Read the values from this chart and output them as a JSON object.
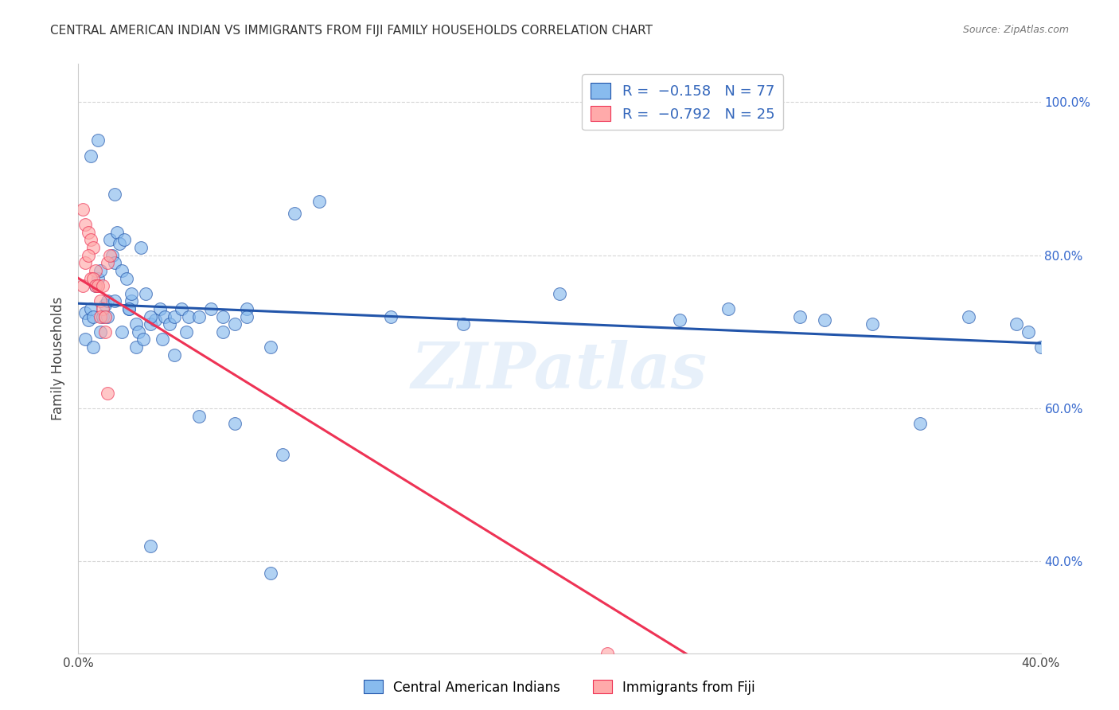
{
  "title": "CENTRAL AMERICAN INDIAN VS IMMIGRANTS FROM FIJI FAMILY HOUSEHOLDS CORRELATION CHART",
  "source": "Source: ZipAtlas.com",
  "ylabel": "Family Households",
  "xlim": [
    0.0,
    0.4
  ],
  "ylim": [
    0.28,
    1.05
  ],
  "xtick_positions": [
    0.0,
    0.05,
    0.1,
    0.15,
    0.2,
    0.25,
    0.3,
    0.35,
    0.4
  ],
  "xticklabels": [
    "0.0%",
    "",
    "",
    "",
    "",
    "",
    "",
    "",
    "40.0%"
  ],
  "ytick_positions": [
    0.4,
    0.6,
    0.8,
    1.0
  ],
  "yticklabels": [
    "40.0%",
    "60.0%",
    "80.0%",
    "100.0%"
  ],
  "blue_color": "#88BBEE",
  "pink_color": "#FFAAAA",
  "blue_line_color": "#2255AA",
  "pink_line_color": "#EE3355",
  "watermark": "ZIPatlas",
  "blue_scatter_x": [
    0.003,
    0.004,
    0.005,
    0.006,
    0.007,
    0.008,
    0.009,
    0.01,
    0.011,
    0.012,
    0.013,
    0.014,
    0.015,
    0.016,
    0.017,
    0.018,
    0.019,
    0.02,
    0.021,
    0.022,
    0.024,
    0.025,
    0.026,
    0.028,
    0.03,
    0.032,
    0.034,
    0.036,
    0.038,
    0.04,
    0.043,
    0.046,
    0.05,
    0.055,
    0.06,
    0.065,
    0.07,
    0.08,
    0.09,
    0.1,
    0.003,
    0.006,
    0.009,
    0.012,
    0.015,
    0.018,
    0.021,
    0.024,
    0.027,
    0.03,
    0.035,
    0.04,
    0.05,
    0.06,
    0.07,
    0.08,
    0.13,
    0.16,
    0.2,
    0.25,
    0.27,
    0.3,
    0.31,
    0.33,
    0.35,
    0.37,
    0.39,
    0.395,
    0.4,
    0.005,
    0.008,
    0.015,
    0.022,
    0.03,
    0.045,
    0.065,
    0.085
  ],
  "blue_scatter_y": [
    0.725,
    0.715,
    0.73,
    0.72,
    0.76,
    0.77,
    0.78,
    0.72,
    0.735,
    0.74,
    0.82,
    0.8,
    0.79,
    0.83,
    0.815,
    0.78,
    0.82,
    0.77,
    0.73,
    0.74,
    0.71,
    0.7,
    0.81,
    0.75,
    0.71,
    0.715,
    0.73,
    0.72,
    0.71,
    0.72,
    0.73,
    0.72,
    0.72,
    0.73,
    0.7,
    0.58,
    0.73,
    0.385,
    0.855,
    0.87,
    0.69,
    0.68,
    0.7,
    0.72,
    0.74,
    0.7,
    0.73,
    0.68,
    0.69,
    0.72,
    0.69,
    0.67,
    0.59,
    0.72,
    0.72,
    0.68,
    0.72,
    0.71,
    0.75,
    0.715,
    0.73,
    0.72,
    0.715,
    0.71,
    0.58,
    0.72,
    0.71,
    0.7,
    0.68,
    0.93,
    0.95,
    0.88,
    0.75,
    0.42,
    0.7,
    0.71,
    0.54
  ],
  "pink_scatter_x": [
    0.002,
    0.003,
    0.004,
    0.005,
    0.006,
    0.007,
    0.008,
    0.009,
    0.01,
    0.011,
    0.012,
    0.013,
    0.002,
    0.003,
    0.004,
    0.005,
    0.006,
    0.007,
    0.008,
    0.009,
    0.01,
    0.011,
    0.012,
    0.22,
    0.225
  ],
  "pink_scatter_y": [
    0.86,
    0.84,
    0.83,
    0.82,
    0.81,
    0.78,
    0.76,
    0.74,
    0.73,
    0.7,
    0.79,
    0.8,
    0.76,
    0.79,
    0.8,
    0.77,
    0.77,
    0.76,
    0.76,
    0.72,
    0.76,
    0.72,
    0.62,
    0.28,
    0.265
  ],
  "blue_line_x": [
    0.0,
    0.4
  ],
  "blue_line_y": [
    0.737,
    0.685
  ],
  "pink_line_x": [
    0.0,
    0.26
  ],
  "pink_line_y": [
    0.77,
    0.265
  ]
}
